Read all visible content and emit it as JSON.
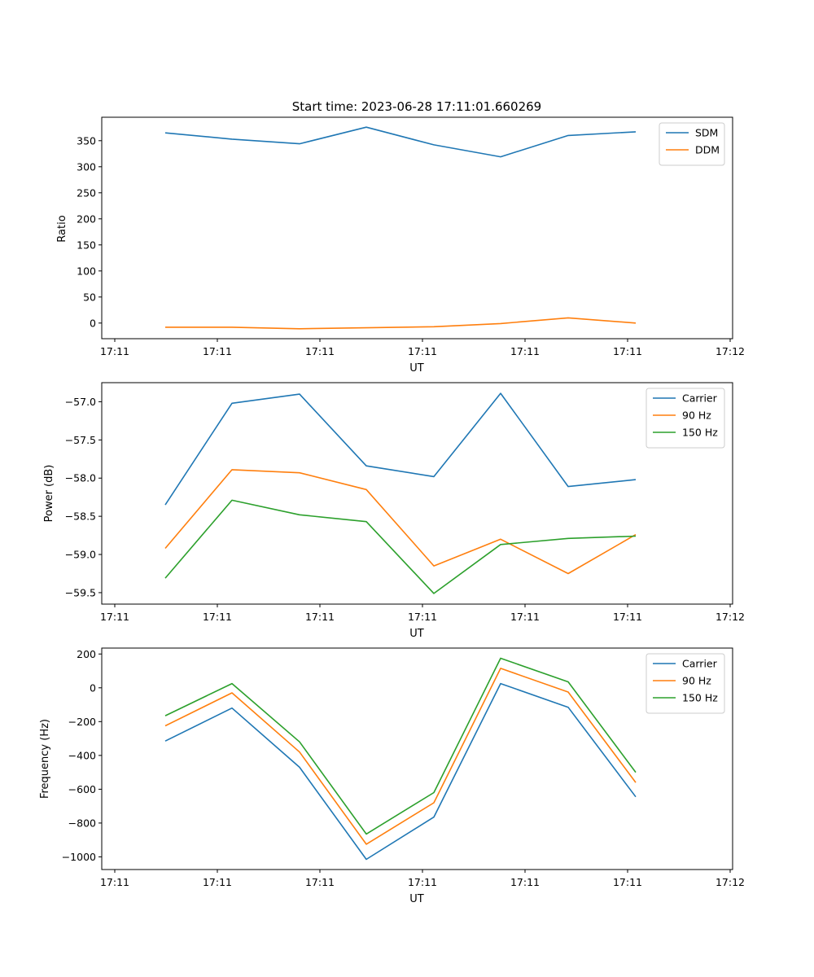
{
  "figure_title": "Start time: 2023-06-28 17:11:01.660269",
  "chart_data": [
    {
      "type": "line",
      "xlabel": "UT",
      "ylabel": "Ratio",
      "x_tick_labels": [
        "17:11",
        "17:11",
        "17:11",
        "17:11",
        "17:11",
        "17:11",
        "17:12"
      ],
      "ylim": [
        -30,
        395
      ],
      "y_ticks": [
        0,
        50,
        100,
        150,
        200,
        250,
        300,
        350
      ],
      "y_tick_labels": [
        "0",
        "50",
        "100",
        "150",
        "200",
        "250",
        "300",
        "350"
      ],
      "legend": "top-right",
      "series": [
        {
          "name": "SDM",
          "color": "#1f77b4",
          "values": [
            365,
            353,
            344,
            376,
            342,
            319,
            360,
            367
          ]
        },
        {
          "name": "DDM",
          "color": "#ff7f0e",
          "values": [
            -8,
            -8,
            -11,
            -9,
            -7,
            -1,
            10,
            0
          ]
        }
      ]
    },
    {
      "type": "line",
      "xlabel": "UT",
      "ylabel": "Power (dB)",
      "x_tick_labels": [
        "17:11",
        "17:11",
        "17:11",
        "17:11",
        "17:11",
        "17:11",
        "17:12"
      ],
      "ylim": [
        -59.65,
        -56.75
      ],
      "y_ticks": [
        -59.5,
        -59.0,
        -58.5,
        -58.0,
        -57.5,
        -57.0
      ],
      "y_tick_labels": [
        "−59.5",
        "−59.0",
        "−58.5",
        "−58.0",
        "−57.5",
        "−57.0"
      ],
      "legend": "top-right",
      "series": [
        {
          "name": "Carrier",
          "color": "#1f77b4",
          "values": [
            -58.35,
            -57.02,
            -56.9,
            -57.84,
            -57.98,
            -56.89,
            -58.11,
            -58.02
          ]
        },
        {
          "name": "90 Hz",
          "color": "#ff7f0e",
          "values": [
            -58.92,
            -57.89,
            -57.93,
            -58.15,
            -59.15,
            -58.8,
            -59.25,
            -58.74
          ]
        },
        {
          "name": "150 Hz",
          "color": "#2ca02c",
          "values": [
            -59.31,
            -58.29,
            -58.48,
            -58.57,
            -59.51,
            -58.87,
            -58.79,
            -58.76
          ]
        }
      ]
    },
    {
      "type": "line",
      "xlabel": "UT",
      "ylabel": "Frequency (Hz)",
      "x_tick_labels": [
        "17:11",
        "17:11",
        "17:11",
        "17:11",
        "17:11",
        "17:11",
        "17:12"
      ],
      "ylim": [
        -1075,
        235
      ],
      "y_ticks": [
        -1000,
        -800,
        -600,
        -400,
        -200,
        0,
        200
      ],
      "y_tick_labels": [
        "−1000",
        "−800",
        "−600",
        "−400",
        "−200",
        "0",
        "200"
      ],
      "legend": "top-right",
      "series": [
        {
          "name": "Carrier",
          "color": "#1f77b4",
          "values": [
            -315,
            -120,
            -470,
            -1015,
            -765,
            25,
            -115,
            -645
          ]
        },
        {
          "name": "90 Hz",
          "color": "#ff7f0e",
          "values": [
            -225,
            -30,
            -380,
            -925,
            -680,
            115,
            -25,
            -560
          ]
        },
        {
          "name": "150 Hz",
          "color": "#2ca02c",
          "values": [
            -165,
            25,
            -320,
            -865,
            -620,
            175,
            35,
            -500
          ]
        }
      ]
    }
  ]
}
